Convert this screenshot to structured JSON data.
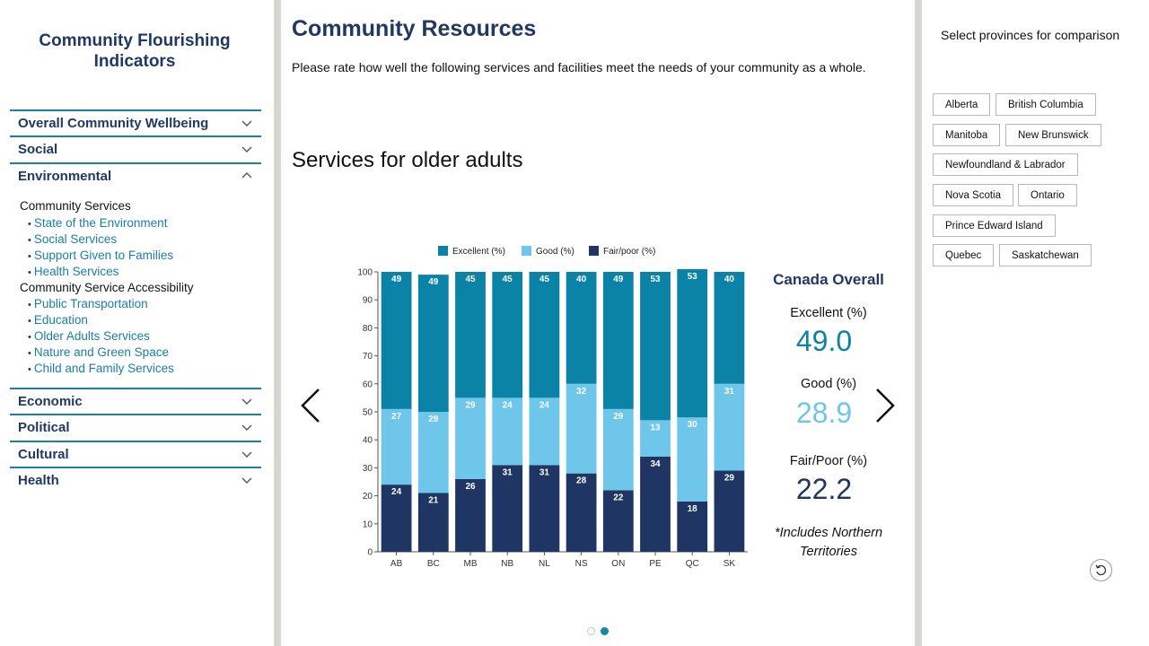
{
  "sidebar": {
    "title": "Community Flourishing Indicators",
    "sections": [
      {
        "label": "Overall Community Wellbeing",
        "expanded": false
      },
      {
        "label": "Social",
        "expanded": false
      },
      {
        "label": "Environmental",
        "expanded": true
      },
      {
        "label": "Economic",
        "expanded": false
      },
      {
        "label": "Political",
        "expanded": false
      },
      {
        "label": "Cultural",
        "expanded": false
      },
      {
        "label": "Health",
        "expanded": false
      }
    ],
    "environmental": {
      "group1_heading": "Community Services",
      "group1_links": [
        "State of the Environment",
        "Social Services",
        "Support Given to Families",
        "Health Services"
      ],
      "group2_heading": "Community Service Accessibility",
      "group2_links": [
        "Public Transportation",
        "Education",
        "Older Adults Services",
        "Nature and Green Space",
        "Child and Family Services"
      ]
    }
  },
  "main": {
    "title": "Community Resources",
    "description": "Please rate how well the following services and facilities meet the needs of your community as a whole.",
    "section_title": "Services for older adults",
    "carousel": {
      "current": 2,
      "total": 2
    }
  },
  "overall": {
    "title": "Canada Overall",
    "excellent_label": "Excellent (%)",
    "excellent_value": "49.0",
    "good_label": "Good (%)",
    "good_value": "28.9",
    "fair_label": "Fair/Poor (%)",
    "fair_value": "22.2",
    "note": "*Includes Northern Territories"
  },
  "right_panel": {
    "title": "Select provinces for comparison",
    "provinces": [
      "Alberta",
      "British Columbia",
      "Manitoba",
      "New Brunswick",
      "Newfoundland & Labrador",
      "Nova Scotia",
      "Ontario",
      "Prince Edward Island",
      "Quebec",
      "Saskatchewan"
    ]
  },
  "colors": {
    "excellent": "#0a83a6",
    "good": "#6ec6ea",
    "fair": "#1f3563",
    "accent": "#1a7fa6",
    "heading": "#1f3864"
  },
  "chart_data": {
    "type": "bar",
    "stacked": true,
    "title": "Services for older adults",
    "categories": [
      "AB",
      "BC",
      "MB",
      "NB",
      "NL",
      "NS",
      "ON",
      "PE",
      "QC",
      "SK"
    ],
    "series": [
      {
        "name": "Fair/poor (%)",
        "values": [
          24,
          21,
          26,
          31,
          31,
          28,
          22,
          34,
          18,
          29
        ]
      },
      {
        "name": "Good (%)",
        "values": [
          27,
          29,
          29,
          24,
          24,
          32,
          29,
          13,
          30,
          31
        ]
      },
      {
        "name": "Excellent (%)",
        "values": [
          49,
          49,
          45,
          45,
          45,
          40,
          49,
          53,
          53,
          40
        ]
      }
    ],
    "legend": [
      "Excellent (%)",
      "Good (%)",
      "Fair/poor (%)"
    ],
    "legend_position": "top",
    "yticks": [
      0,
      10,
      20,
      30,
      40,
      50,
      60,
      70,
      80,
      90,
      100
    ],
    "ylim": [
      0,
      100
    ],
    "xlabel": "",
    "ylabel": ""
  }
}
